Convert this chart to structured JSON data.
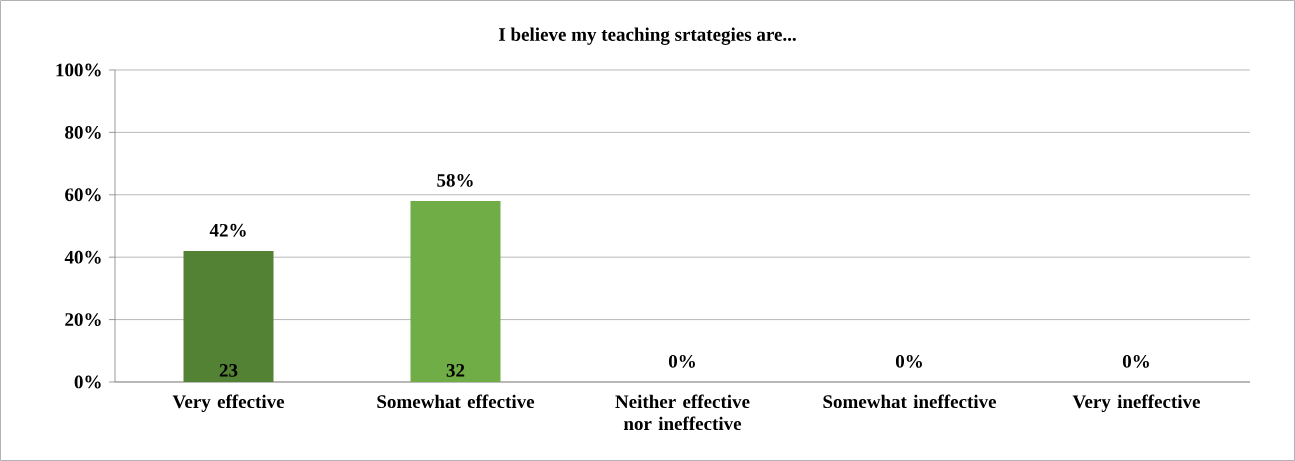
{
  "chart_data": {
    "type": "bar",
    "title": "I believe my teaching srtategies are...",
    "categories": [
      "Very effective",
      "Somewhat effective",
      "Neither effective nor ineffective",
      "Somewhat ineffective",
      "Very ineffective"
    ],
    "values": [
      42,
      58,
      0,
      0,
      0
    ],
    "value_labels": [
      "42%",
      "58%",
      "0%",
      "0%",
      "0%"
    ],
    "colors": [
      "#548235",
      "#70ad47",
      "#70ad47",
      "#70ad47",
      "#70ad47"
    ],
    "ylim": [
      0,
      100
    ],
    "yticks": [
      {
        "value": 0,
        "label": "0%"
      },
      {
        "value": 20,
        "label": "20%"
      },
      {
        "value": 40,
        "label": "40%"
      },
      {
        "value": 60,
        "label": "60%"
      },
      {
        "value": 80,
        "label": "80%"
      },
      {
        "value": 100,
        "label": "100%"
      }
    ],
    "grid": "y",
    "annotations": [
      {
        "text": "23",
        "x": "Very effective",
        "y": 0
      },
      {
        "text": "32",
        "x": "Somewhat effective",
        "y": 0
      }
    ]
  }
}
